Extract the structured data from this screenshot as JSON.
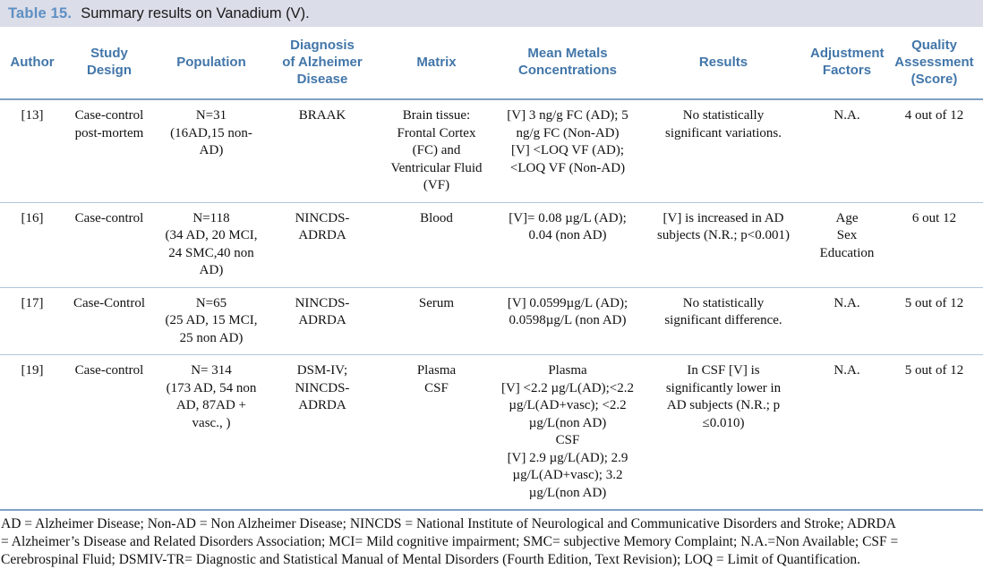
{
  "caption": {
    "number": "Table 15.",
    "text": "Summary results on Vanadium (V)."
  },
  "colors": {
    "caption_bar_bg": "#dbdde8",
    "caption_number_blue": "#5e90c4",
    "header_text_blue": "#4276a9",
    "rule_dark_blue": "#7fa1c5",
    "rule_light_blue": "#b0c6dc"
  },
  "table": {
    "columns": [
      "Author",
      "Study\nDesign",
      "Population",
      "Diagnosis\nof Alzheimer\nDisease",
      "Matrix",
      "Mean Metals\nConcentrations",
      "Results",
      "Adjustment\nFactors",
      "Quality\nAssessment\n(Score)"
    ],
    "rows": [
      {
        "cells": [
          "[13]",
          "Case-control\npost-mortem",
          "N=31\n(16AD,15 non-\nAD)",
          "BRAAK",
          "Brain tissue:\nFrontal Cortex\n(FC) and\nVentricular Fluid\n(VF)",
          "[V] 3 ng/g FC (AD); 5\nng/g FC (Non-AD)\n[V] <LOQ VF (AD);\n<LOQ VF (Non-AD)",
          "No statistically\nsignificant variations.",
          "N.A.",
          "4 out of 12"
        ]
      },
      {
        "cells": [
          "[16]",
          "Case-control",
          "N=118\n(34 AD, 20 MCI,\n24 SMC,40 non\nAD)",
          "NINCDS-\nADRDA",
          "Blood",
          "[V]= 0.08 µg/L (AD);\n0.04 (non AD)",
          "[V] is increased in AD\nsubjects (N.R.; p<0.001)",
          "Age\nSex\nEducation",
          "6 out 12"
        ]
      },
      {
        "cells": [
          "[17]",
          "Case-Control",
          "N=65\n(25 AD, 15 MCI,\n25 non AD)",
          "NINCDS-\nADRDA",
          "Serum",
          "[V] 0.0599µg/L (AD);\n0.0598µg/L (non AD)",
          "No statistically\nsignificant difference.",
          "N.A.",
          "5 out of 12"
        ]
      },
      {
        "cells": [
          "[19]",
          "Case-control",
          "N= 314\n(173 AD, 54 non\nAD, 87AD +\nvasc., )",
          "DSM-IV;\nNINCDS-\nADRDA",
          "Plasma\nCSF",
          "Plasma\n[V] <2.2 µg/L(AD);<2.2\nµg/L(AD+vasc); <2.2\nµg/L(non AD)\nCSF\n[V] 2.9 µg/L(AD); 2.9\nµg/L(AD+vasc); 3.2\nµg/L(non AD)",
          "In CSF [V] is\nsignificantly lower in\nAD subjects (N.R.; p\n≤0.010)",
          "N.A.",
          "5 out of 12"
        ]
      }
    ]
  },
  "footnote": "AD = Alzheimer Disease; Non-AD = Non Alzheimer Disease; NINCDS = National Institute of Neurological and Communicative Disorders and Stroke; ADRDA\n= Alzheimer’s Disease and Related Disorders Association; MCI= Mild cognitive impairment; SMC= subjective Memory Complaint; N.A.=Non Available; CSF =\nCerebrospinal Fluid; DSMIV-TR= Diagnostic and Statistical Manual of Mental Disorders (Fourth Edition, Text Revision); LOQ = Limit of Quantification."
}
